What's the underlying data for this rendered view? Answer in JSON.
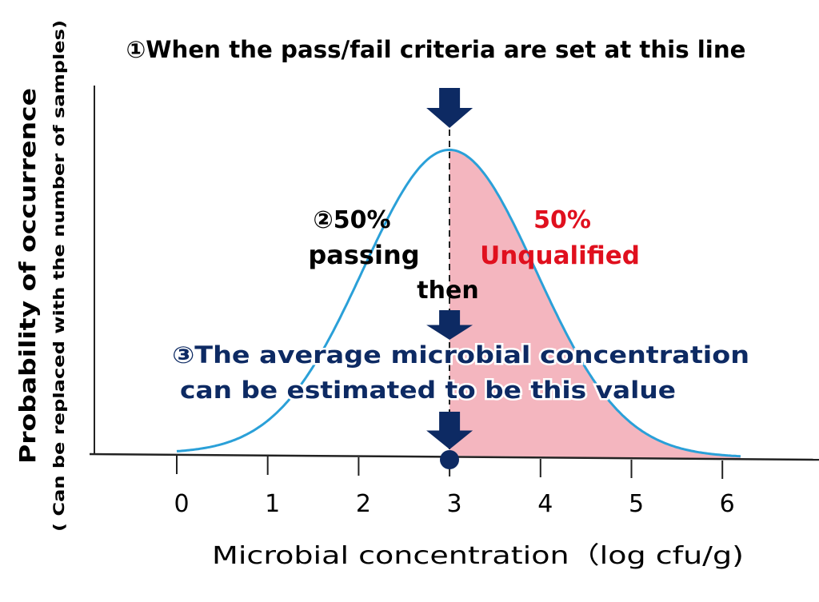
{
  "title": "①When the pass/fail criteria are set at this line",
  "y_label": "Probability of occurrence",
  "y_sublabel": "( Can be replaced with the number of samples)",
  "x_label": "Microbial concentration（log cfu/g)",
  "passing_pct": "②50%",
  "passing_label": "passing",
  "fail_pct": "50%",
  "fail_label": "Unqualified",
  "then_label": "then",
  "estimate_line1": "③The average microbial concentration",
  "estimate_line2": "can be estimated to be this value",
  "colors": {
    "curve": "#2aa0d8",
    "fill": "#f4b6bf",
    "arrow": "#0d2a63",
    "red": "#e0101e",
    "navy": "#0d2a63"
  },
  "chart_data": {
    "type": "area",
    "distribution": "normal",
    "mean": 3,
    "sd": 0.95,
    "x_range": [
      0,
      6.2
    ],
    "threshold": 3,
    "ticks": [
      "0",
      "1",
      "2",
      "3",
      "4",
      "5",
      "6"
    ],
    "xlabel": "Microbial concentration（log cfu/g)",
    "ylabel": "Probability of occurrence"
  }
}
